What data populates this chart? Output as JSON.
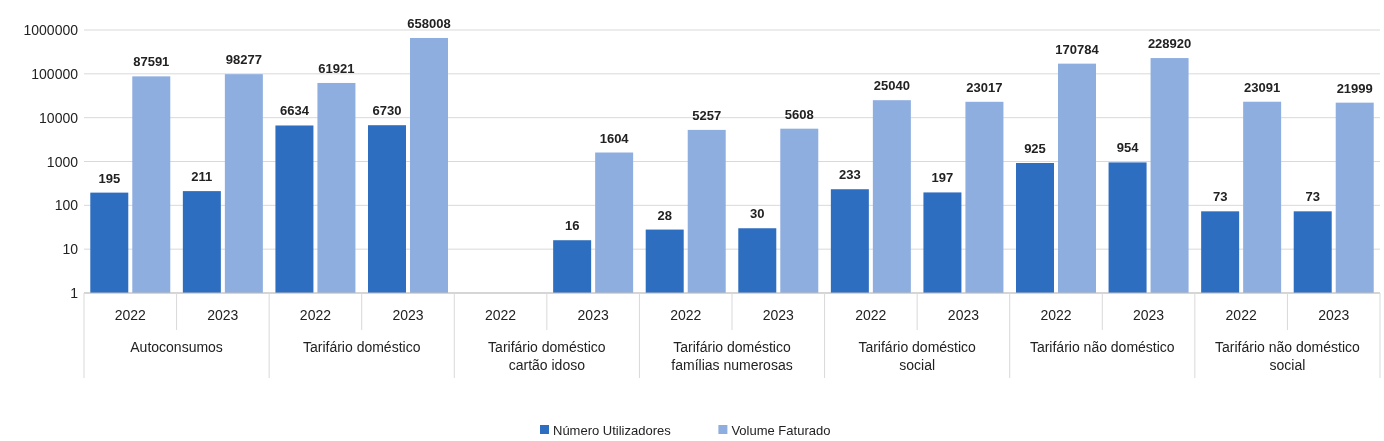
{
  "chart_data": {
    "type": "bar",
    "categories": [
      "2022",
      "2023",
      "2022",
      "2023",
      "2022",
      "2023",
      "2022",
      "2023",
      "2022",
      "2023",
      "2022",
      "2023",
      "2022",
      "2023"
    ],
    "series": [
      {
        "name": "Número Utilizadores",
        "color": "#2e6ec0",
        "values": [
          195,
          211,
          6634,
          6730,
          null,
          16,
          28,
          30,
          233,
          197,
          925,
          954,
          73,
          73
        ]
      },
      {
        "name": "Volume Faturado",
        "color": "#8eaee0",
        "values": [
          87591,
          98277,
          61921,
          658008,
          null,
          1604,
          5257,
          5608,
          25040,
          23017,
          170784,
          228920,
          23091,
          21999
        ]
      }
    ],
    "annotations": [
      "Autoconsumos",
      "Tarifário doméstico",
      "Tarifário doméstico cartão idoso",
      "Tarifário doméstico famílias numerosas",
      "Tarifário doméstico social",
      "Tarifário não doméstico",
      "Tarifário não doméstico social"
    ],
    "log": true,
    "ylim": [
      1,
      1000000
    ],
    "yticks": [
      1,
      10,
      100,
      1000,
      10000,
      100000,
      1000000
    ],
    "grid": "y",
    "data_labels": true,
    "legend": "bottom"
  }
}
